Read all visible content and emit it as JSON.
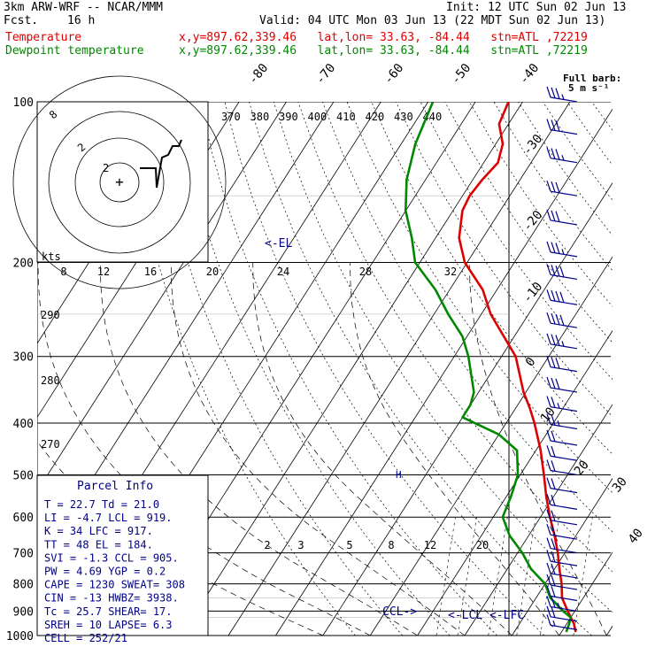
{
  "header": {
    "model": "3km ARW-WRF -- NCAR/MMM",
    "init": "Init: 12 UTC Sun 02 Jun 13",
    "fcst_label": "Fcst.",
    "fcst_value": "16 h",
    "valid": "Valid: 04 UTC Mon 03 Jun 13 (22 MDT Sun 02 Jun 13)",
    "series_rows": [
      {
        "name": "Temperature",
        "info": "x,y=897.62,339.46   lat,lon= 33.63, -84.44   stn=ATL ,72219",
        "color": "#dd0000"
      },
      {
        "name": "Dewpoint temperature",
        "info": "x,y=897.62,339.46   lat,lon= 33.63, -84.44   stn=ATL ,72219",
        "color": "#008800"
      }
    ]
  },
  "chart_data": {
    "type": "line",
    "title": "Skew-T log-P sounding",
    "y_axis": {
      "scale": "log",
      "range": [
        1000,
        100
      ],
      "ticks": [
        "100",
        "200",
        "300",
        "400",
        "500",
        "600",
        "700",
        "800",
        "900",
        "1000"
      ]
    },
    "isotherm_labels": [
      "-80",
      "-70",
      "-60",
      "-50",
      "-40",
      "-30",
      "-20",
      "-10",
      "0",
      "10",
      "20",
      "30",
      "40"
    ],
    "theta_labels": [
      "370",
      "380",
      "390",
      "400",
      "410",
      "420",
      "430",
      "440"
    ],
    "theta_e_labels": [
      "290",
      "280",
      "270"
    ],
    "mixing_ratio_labels": [
      "2",
      "3",
      "5",
      "8",
      "12",
      "20"
    ],
    "hodograph": {
      "units_label": "kts",
      "ring_labels": [
        "8",
        "12",
        "16",
        "20",
        "24",
        "28",
        "32"
      ],
      "inner_ring_labels": [
        "8",
        "2"
      ]
    },
    "series": [
      {
        "name": "Temperature",
        "color": "#dd0000",
        "points": [
          [
            985,
            23.0
          ],
          [
            950,
            21.5
          ],
          [
            925,
            20.0
          ],
          [
            900,
            18.5
          ],
          [
            850,
            15.5
          ],
          [
            800,
            13.5
          ],
          [
            750,
            11.0
          ],
          [
            700,
            8.5
          ],
          [
            650,
            5.5
          ],
          [
            600,
            2.0
          ],
          [
            550,
            -1.5
          ],
          [
            500,
            -5.0
          ],
          [
            450,
            -9.0
          ],
          [
            400,
            -14.0
          ],
          [
            375,
            -17.0
          ],
          [
            350,
            -20.5
          ],
          [
            300,
            -27.0
          ],
          [
            250,
            -38.0
          ],
          [
            225,
            -43.0
          ],
          [
            200,
            -50.5
          ],
          [
            180,
            -55.0
          ],
          [
            160,
            -58.0
          ],
          [
            150,
            -58.5
          ],
          [
            140,
            -58.0
          ],
          [
            130,
            -57.0
          ],
          [
            120,
            -58.5
          ],
          [
            110,
            -62.0
          ],
          [
            100,
            -63.0
          ]
        ]
      },
      {
        "name": "Dewpoint temperature",
        "color": "#008800",
        "points": [
          [
            985,
            21.0
          ],
          [
            950,
            20.5
          ],
          [
            925,
            20.0
          ],
          [
            900,
            17.5
          ],
          [
            850,
            13.0
          ],
          [
            800,
            10.0
          ],
          [
            750,
            5.0
          ],
          [
            700,
            1.0
          ],
          [
            650,
            -4.0
          ],
          [
            600,
            -8.0
          ],
          [
            550,
            -9.0
          ],
          [
            500,
            -10.5
          ],
          [
            450,
            -14.0
          ],
          [
            420,
            -20.0
          ],
          [
            390,
            -30.0
          ],
          [
            370,
            -30.0
          ],
          [
            350,
            -31.0
          ],
          [
            300,
            -37.0
          ],
          [
            275,
            -41.0
          ],
          [
            250,
            -47.0
          ],
          [
            225,
            -53.0
          ],
          [
            200,
            -61.0
          ],
          [
            180,
            -65.0
          ],
          [
            160,
            -70.0
          ],
          [
            140,
            -74.0
          ],
          [
            120,
            -77.0
          ],
          [
            100,
            -79.0
          ]
        ]
      }
    ],
    "level_markers": {
      "el": "<-EL",
      "ccl": "CCL->",
      "lcl_lfc": "<-LCL <-LFC"
    },
    "wind_label_line1": "Full barb:",
    "wind_label_line2": "5 m s⁻¹",
    "wind_barbs": [
      {
        "p": 100,
        "flags": 0,
        "full": 3,
        "half": 1
      },
      {
        "p": 115,
        "flags": 0,
        "full": 3,
        "half": 0
      },
      {
        "p": 130,
        "flags": 0,
        "full": 3,
        "half": 1
      },
      {
        "p": 150,
        "flags": 0,
        "full": 3,
        "half": 0
      },
      {
        "p": 170,
        "flags": 0,
        "full": 3,
        "half": 0
      },
      {
        "p": 195,
        "flags": 0,
        "full": 3,
        "half": 1
      },
      {
        "p": 215,
        "flags": 0,
        "full": 4,
        "half": 0
      },
      {
        "p": 240,
        "flags": 0,
        "full": 4,
        "half": 0
      },
      {
        "p": 265,
        "flags": 0,
        "full": 4,
        "half": 0
      },
      {
        "p": 290,
        "flags": 0,
        "full": 3,
        "half": 1
      },
      {
        "p": 320,
        "flags": 0,
        "full": 3,
        "half": 0
      },
      {
        "p": 350,
        "flags": 0,
        "full": 3,
        "half": 0
      },
      {
        "p": 380,
        "flags": 0,
        "full": 2,
        "half": 1
      },
      {
        "p": 410,
        "flags": 0,
        "full": 2,
        "half": 1
      },
      {
        "p": 440,
        "flags": 0,
        "full": 2,
        "half": 0
      },
      {
        "p": 470,
        "flags": 0,
        "full": 2,
        "half": 0
      },
      {
        "p": 500,
        "flags": 0,
        "full": 2,
        "half": 0
      },
      {
        "p": 540,
        "flags": 0,
        "full": 2,
        "half": 0
      },
      {
        "p": 580,
        "flags": 0,
        "full": 2,
        "half": 0
      },
      {
        "p": 620,
        "flags": 0,
        "full": 2,
        "half": 0
      },
      {
        "p": 660,
        "flags": 0,
        "full": 2,
        "half": 0
      },
      {
        "p": 700,
        "flags": 0,
        "full": 2,
        "half": 0
      },
      {
        "p": 740,
        "flags": 0,
        "full": 2,
        "half": 0
      },
      {
        "p": 780,
        "flags": 0,
        "full": 2,
        "half": 0
      },
      {
        "p": 820,
        "flags": 0,
        "full": 2,
        "half": 0
      },
      {
        "p": 860,
        "flags": 0,
        "full": 2,
        "half": 0
      },
      {
        "p": 900,
        "flags": 0,
        "full": 2,
        "half": 1
      },
      {
        "p": 940,
        "flags": 0,
        "full": 2,
        "half": 0
      },
      {
        "p": 975,
        "flags": 0,
        "full": 1,
        "half": 1
      }
    ],
    "parcel_info": {
      "title": "Parcel Info",
      "rows": [
        "T  =   22.7  Td =  21.0",
        "LI =   -4.7  LCL =  919.",
        "K  =     34  LFC =  917.",
        "TT =     48  EL =  184.",
        "SVI =  -1.3  CCL =  905.",
        "PW =   4.69  YGP =   0.2",
        "CAPE =  1230  SWEAT=  308",
        "CIN =   -13  HWBZ= 3938.",
        "Tc =   25.7  SHEAR=  17.",
        "SREH =   10  LAPSE=  6.3",
        "CELL = 252/21"
      ]
    },
    "colors": {
      "temperature": "#dd0000",
      "dewpoint": "#008800",
      "grid": "#000000",
      "labels": "#00008b"
    }
  }
}
